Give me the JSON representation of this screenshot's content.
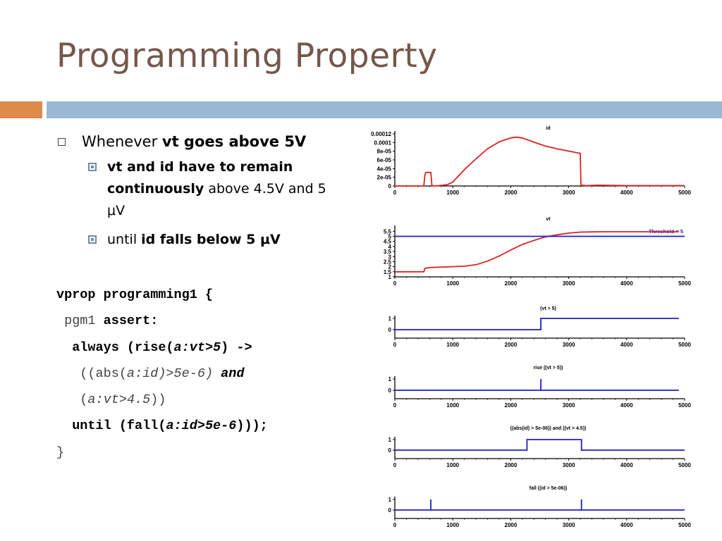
{
  "slide": {
    "title": "Programming Property",
    "bullet1": {
      "prefix": "Whenever ",
      "bold": "vt goes above 5V"
    },
    "sub1": {
      "bold": "vt and id have to remain continuously",
      "rest": " above 4.5V and 5 μV"
    },
    "sub2": {
      "prefix": "until ",
      "bold": "id falls below 5 μV"
    }
  },
  "code": {
    "l1": "vprop programming1 {",
    "l2a": " pgm1 ",
    "l2b": "assert:",
    "l3a": "  always (rise(",
    "l3b": "a:vt>5",
    "l3c": ") ->",
    "l4a": "   ((abs(",
    "l4b": "a:id)>5e-6)",
    "l4c": " and",
    "l5a": "   (",
    "l5b": "a:vt>4.5",
    "l5c": "))",
    "l6a": "  until (fall(",
    "l6b": "a:id>5e-6",
    "l6c": ")));",
    "l7": "}"
  },
  "chart_data": [
    {
      "type": "line",
      "title": "id",
      "x_ticks": [
        "0",
        "1000",
        "2000",
        "3000",
        "4000",
        "5000"
      ],
      "y_ticks": [
        "0.00012",
        "0.0001",
        "8e-05",
        "6e-05",
        "4e-05",
        "2e-05",
        "0"
      ],
      "xlim": [
        0,
        5000
      ],
      "ylim": [
        0,
        0.00014
      ],
      "series": [
        {
          "color": "#e02020",
          "x": [
            0,
            500,
            520,
            540,
            620,
            640,
            700,
            900,
            1000,
            1200,
            1400,
            1600,
            1800,
            2000,
            2100,
            2200,
            2400,
            2600,
            2800,
            3000,
            3200,
            3210,
            3220,
            3300,
            3500,
            4000,
            5000
          ],
          "y": [
            0,
            0,
            3e-05,
            3.5e-05,
            3.5e-05,
            0,
            0,
            3e-06,
            1e-05,
            4.2e-05,
            7e-05,
            9.6e-05,
            0.000114,
            0.000124,
            0.000126,
            0.000124,
            0.000113,
            0.000103,
            9.6e-05,
            9e-05,
            8.4e-05,
            4e-06,
            2e-06,
            1e-06,
            2e-06,
            1e-06,
            1e-06
          ]
        }
      ]
    },
    {
      "type": "line",
      "title": "vt",
      "x_ticks": [
        "0",
        "1000",
        "2000",
        "3000",
        "4000",
        "5000"
      ],
      "y_ticks": [
        "5.5",
        "5",
        "4.5",
        "4",
        "3.5",
        "3",
        "2.5",
        "2",
        "1.5",
        "1"
      ],
      "xlim": [
        0,
        5000
      ],
      "ylim": [
        1,
        5.8
      ],
      "annotation": "Threshold = 5",
      "series": [
        {
          "color": "#e02020",
          "x": [
            0,
            500,
            520,
            600,
            800,
            1000,
            1200,
            1400,
            1600,
            1800,
            2000,
            2200,
            2400,
            2600,
            2800,
            3000,
            3200,
            3400,
            3600,
            4000,
            4500,
            4900
          ],
          "y": [
            1.5,
            1.5,
            1.85,
            1.92,
            1.97,
            2.0,
            2.05,
            2.2,
            2.55,
            3.05,
            3.65,
            4.2,
            4.6,
            4.95,
            5.15,
            5.32,
            5.42,
            5.44,
            5.45,
            5.45,
            5.45,
            5.45
          ]
        },
        {
          "color": "#1e1ec8",
          "x": [
            0,
            5000
          ],
          "y": [
            5,
            5
          ]
        }
      ]
    },
    {
      "type": "line",
      "title": "(vt > 5)",
      "x_ticks": [
        "0",
        "1000",
        "2000",
        "3000",
        "4000",
        "5000"
      ],
      "y_ticks": [
        "1",
        "0"
      ],
      "xlim": [
        0,
        5000
      ],
      "ylim": [
        0,
        1
      ],
      "series": [
        {
          "color": "#1e1ec8",
          "x": [
            0,
            2520,
            2520,
            4900
          ],
          "y": [
            0,
            0,
            1,
            1
          ]
        }
      ]
    },
    {
      "type": "line",
      "title": "rise ((vt > 5))",
      "x_ticks": [
        "0",
        "1000",
        "2000",
        "3000",
        "4000",
        "5000"
      ],
      "y_ticks": [
        "1",
        "0"
      ],
      "xlim": [
        0,
        5000
      ],
      "ylim": [
        0,
        1
      ],
      "series": [
        {
          "color": "#1e1ec8",
          "x": [
            0,
            2520,
            2520,
            2520,
            4900
          ],
          "y": [
            0,
            0,
            1,
            0,
            0
          ]
        }
      ]
    },
    {
      "type": "line",
      "title": "((abs(id) > 5e-06)) and ((vt > 4.5))",
      "x_ticks": [
        "0",
        "1000",
        "2000",
        "3000",
        "4000",
        "5000"
      ],
      "y_ticks": [
        "1",
        "0"
      ],
      "xlim": [
        0,
        5000
      ],
      "ylim": [
        0,
        1
      ],
      "series": [
        {
          "color": "#1e1ec8",
          "x": [
            0,
            2280,
            2280,
            3220,
            3220,
            5000
          ],
          "y": [
            0,
            0,
            1,
            1,
            0,
            0
          ]
        }
      ]
    },
    {
      "type": "line",
      "title": "fall ((id > 5e-06))",
      "x_ticks": [
        "0",
        "1000",
        "2000",
        "3000",
        "4000",
        "5000"
      ],
      "y_ticks": [
        "1",
        "0"
      ],
      "xlim": [
        0,
        5000
      ],
      "ylim": [
        0,
        1
      ],
      "series": [
        {
          "color": "#1e1ec8",
          "x": [
            0,
            620,
            620,
            620,
            3220,
            3220,
            3220,
            5000
          ],
          "y": [
            0,
            0,
            1,
            0,
            0,
            1,
            0,
            0
          ]
        }
      ]
    }
  ]
}
